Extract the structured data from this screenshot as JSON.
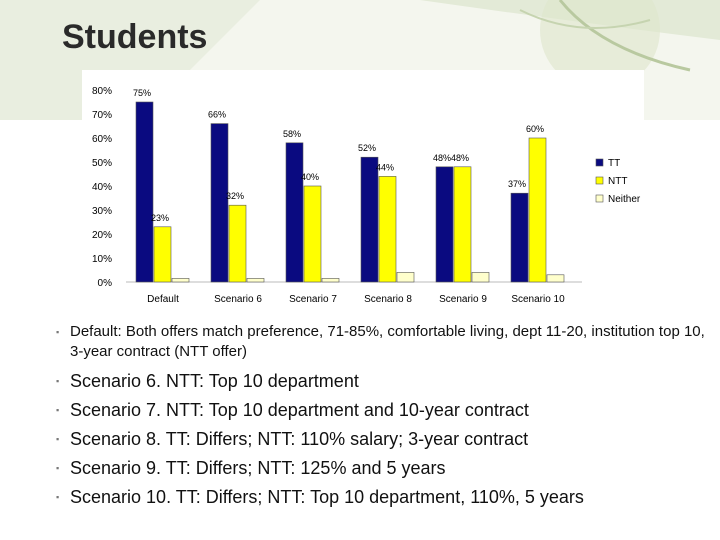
{
  "slide": {
    "title": "Students",
    "bullets": [
      "Default: Both offers match preference, 71-85%, comfortable living, dept 11-20, institution top 10, 3-year contract (NTT offer)",
      "Scenario 6. NTT: Top 10 department",
      "Scenario 7. NTT: Top 10 department and 10-year contract",
      "Scenario 8. TT: Differs; NTT: 110% salary; 3-year contract",
      "Scenario 9. TT: Differs; NTT: 125% and 5 years",
      "Scenario 10. TT: Differs; NTT: Top 10 department, 110%, 5 years"
    ],
    "bullet_marker": "▪"
  },
  "chart_data": {
    "type": "bar",
    "categories": [
      "Default",
      "Scenario 6",
      "Scenario 7",
      "Scenario 8",
      "Scenario 9",
      "Scenario 10"
    ],
    "series": [
      {
        "name": "TT",
        "values": [
          75,
          66,
          58,
          52,
          48,
          37
        ],
        "labels": [
          "75%",
          "66%",
          "58%",
          "52%",
          "48%",
          "37%"
        ],
        "color": "#0a0a80"
      },
      {
        "name": "NTT",
        "values": [
          23,
          32,
          40,
          44,
          48,
          60
        ],
        "labels": [
          "23%",
          "32%",
          "40%",
          "44%",
          "48%",
          "60%"
        ],
        "color": "#ffff00"
      },
      {
        "name": "Neither",
        "values": [
          1.5,
          1.5,
          1.5,
          4,
          4,
          3
        ],
        "color": "#ffffcc"
      }
    ],
    "yticks": [
      "0%",
      "10%",
      "20%",
      "30%",
      "40%",
      "50%",
      "60%",
      "70%",
      "80%"
    ],
    "ylim": [
      0,
      80
    ],
    "grid": false,
    "legend": "right"
  }
}
